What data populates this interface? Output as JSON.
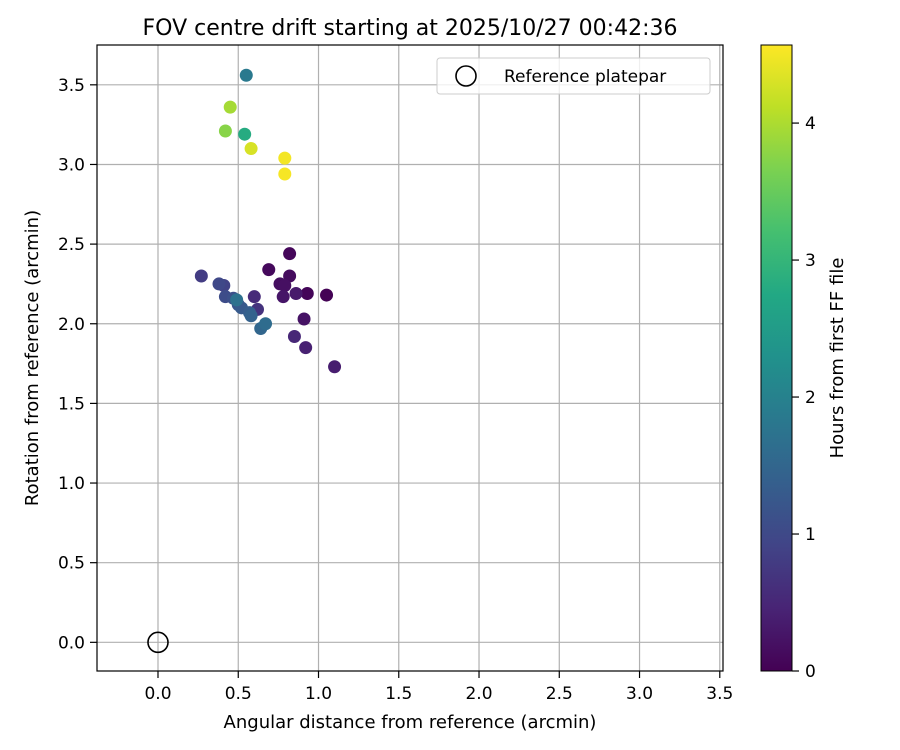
{
  "chart_data": {
    "type": "scatter",
    "title": "FOV centre drift starting at 2025/10/27 00:42:36",
    "xlabel": "Angular distance from reference (arcmin)",
    "ylabel": "Rotation from reference (arcmin)",
    "xlim": [
      -0.38,
      3.52
    ],
    "ylim": [
      -0.18,
      3.75
    ],
    "xticks": [
      0.0,
      0.5,
      1.0,
      1.5,
      2.0,
      2.5,
      3.0,
      3.5
    ],
    "xtick_labels": [
      "0.0",
      "0.5",
      "1.0",
      "1.5",
      "2.0",
      "2.5",
      "3.0",
      "3.5"
    ],
    "yticks": [
      0.0,
      0.5,
      1.0,
      1.5,
      2.0,
      2.5,
      3.0,
      3.5
    ],
    "ytick_labels": [
      "0.0",
      "0.5",
      "1.0",
      "1.5",
      "2.0",
      "2.5",
      "3.0",
      "3.5"
    ],
    "grid": true,
    "legend": {
      "position": "top-right",
      "entries": [
        {
          "label": "Reference platepar",
          "marker": "open-circle"
        }
      ]
    },
    "reference_point": {
      "x": 0.0,
      "y": 0.0
    },
    "colorbar": {
      "label": "Hours from first FF file",
      "colormap": "viridis",
      "range": [
        0,
        4.57
      ],
      "ticks": [
        0,
        1,
        2,
        3,
        4
      ],
      "tick_labels": [
        "0",
        "1",
        "2",
        "3",
        "4"
      ]
    },
    "series": [
      {
        "points": [
          {
            "x": 1.05,
            "y": 2.18,
            "c": 0.02
          },
          {
            "x": 0.93,
            "y": 2.19,
            "c": 0.05
          },
          {
            "x": 0.82,
            "y": 2.44,
            "c": 0.08
          },
          {
            "x": 0.69,
            "y": 2.34,
            "c": 0.11
          },
          {
            "x": 0.82,
            "y": 2.3,
            "c": 0.14
          },
          {
            "x": 0.76,
            "y": 2.25,
            "c": 0.17
          },
          {
            "x": 0.79,
            "y": 2.24,
            "c": 0.2
          },
          {
            "x": 0.91,
            "y": 2.03,
            "c": 0.23
          },
          {
            "x": 0.78,
            "y": 2.17,
            "c": 0.26
          },
          {
            "x": 0.86,
            "y": 2.19,
            "c": 0.32
          },
          {
            "x": 1.1,
            "y": 1.73,
            "c": 0.37
          },
          {
            "x": 0.92,
            "y": 1.85,
            "c": 0.42
          },
          {
            "x": 0.85,
            "y": 1.92,
            "c": 0.5
          },
          {
            "x": 0.6,
            "y": 2.17,
            "c": 0.55
          },
          {
            "x": 0.62,
            "y": 2.09,
            "c": 0.65
          },
          {
            "x": 0.27,
            "y": 2.3,
            "c": 0.8
          },
          {
            "x": 0.41,
            "y": 2.24,
            "c": 0.9
          },
          {
            "x": 0.38,
            "y": 2.25,
            "c": 0.98
          },
          {
            "x": 0.42,
            "y": 2.17,
            "c": 1.05
          },
          {
            "x": 0.47,
            "y": 2.16,
            "c": 1.12
          },
          {
            "x": 0.5,
            "y": 2.12,
            "c": 1.2
          },
          {
            "x": 0.52,
            "y": 2.1,
            "c": 1.28
          },
          {
            "x": 0.57,
            "y": 2.07,
            "c": 1.35
          },
          {
            "x": 0.58,
            "y": 2.05,
            "c": 1.42
          },
          {
            "x": 0.64,
            "y": 1.97,
            "c": 1.5
          },
          {
            "x": 0.67,
            "y": 2.0,
            "c": 1.6
          },
          {
            "x": 0.49,
            "y": 2.15,
            "c": 1.7
          },
          {
            "x": 0.55,
            "y": 3.56,
            "c": 1.85
          },
          {
            "x": 0.54,
            "y": 3.19,
            "c": 2.8
          },
          {
            "x": 0.42,
            "y": 3.21,
            "c": 3.75
          },
          {
            "x": 0.45,
            "y": 3.36,
            "c": 3.95
          },
          {
            "x": 0.58,
            "y": 3.1,
            "c": 4.3
          },
          {
            "x": 0.79,
            "y": 3.04,
            "c": 4.5
          },
          {
            "x": 0.79,
            "y": 2.94,
            "c": 4.52
          }
        ]
      }
    ]
  }
}
